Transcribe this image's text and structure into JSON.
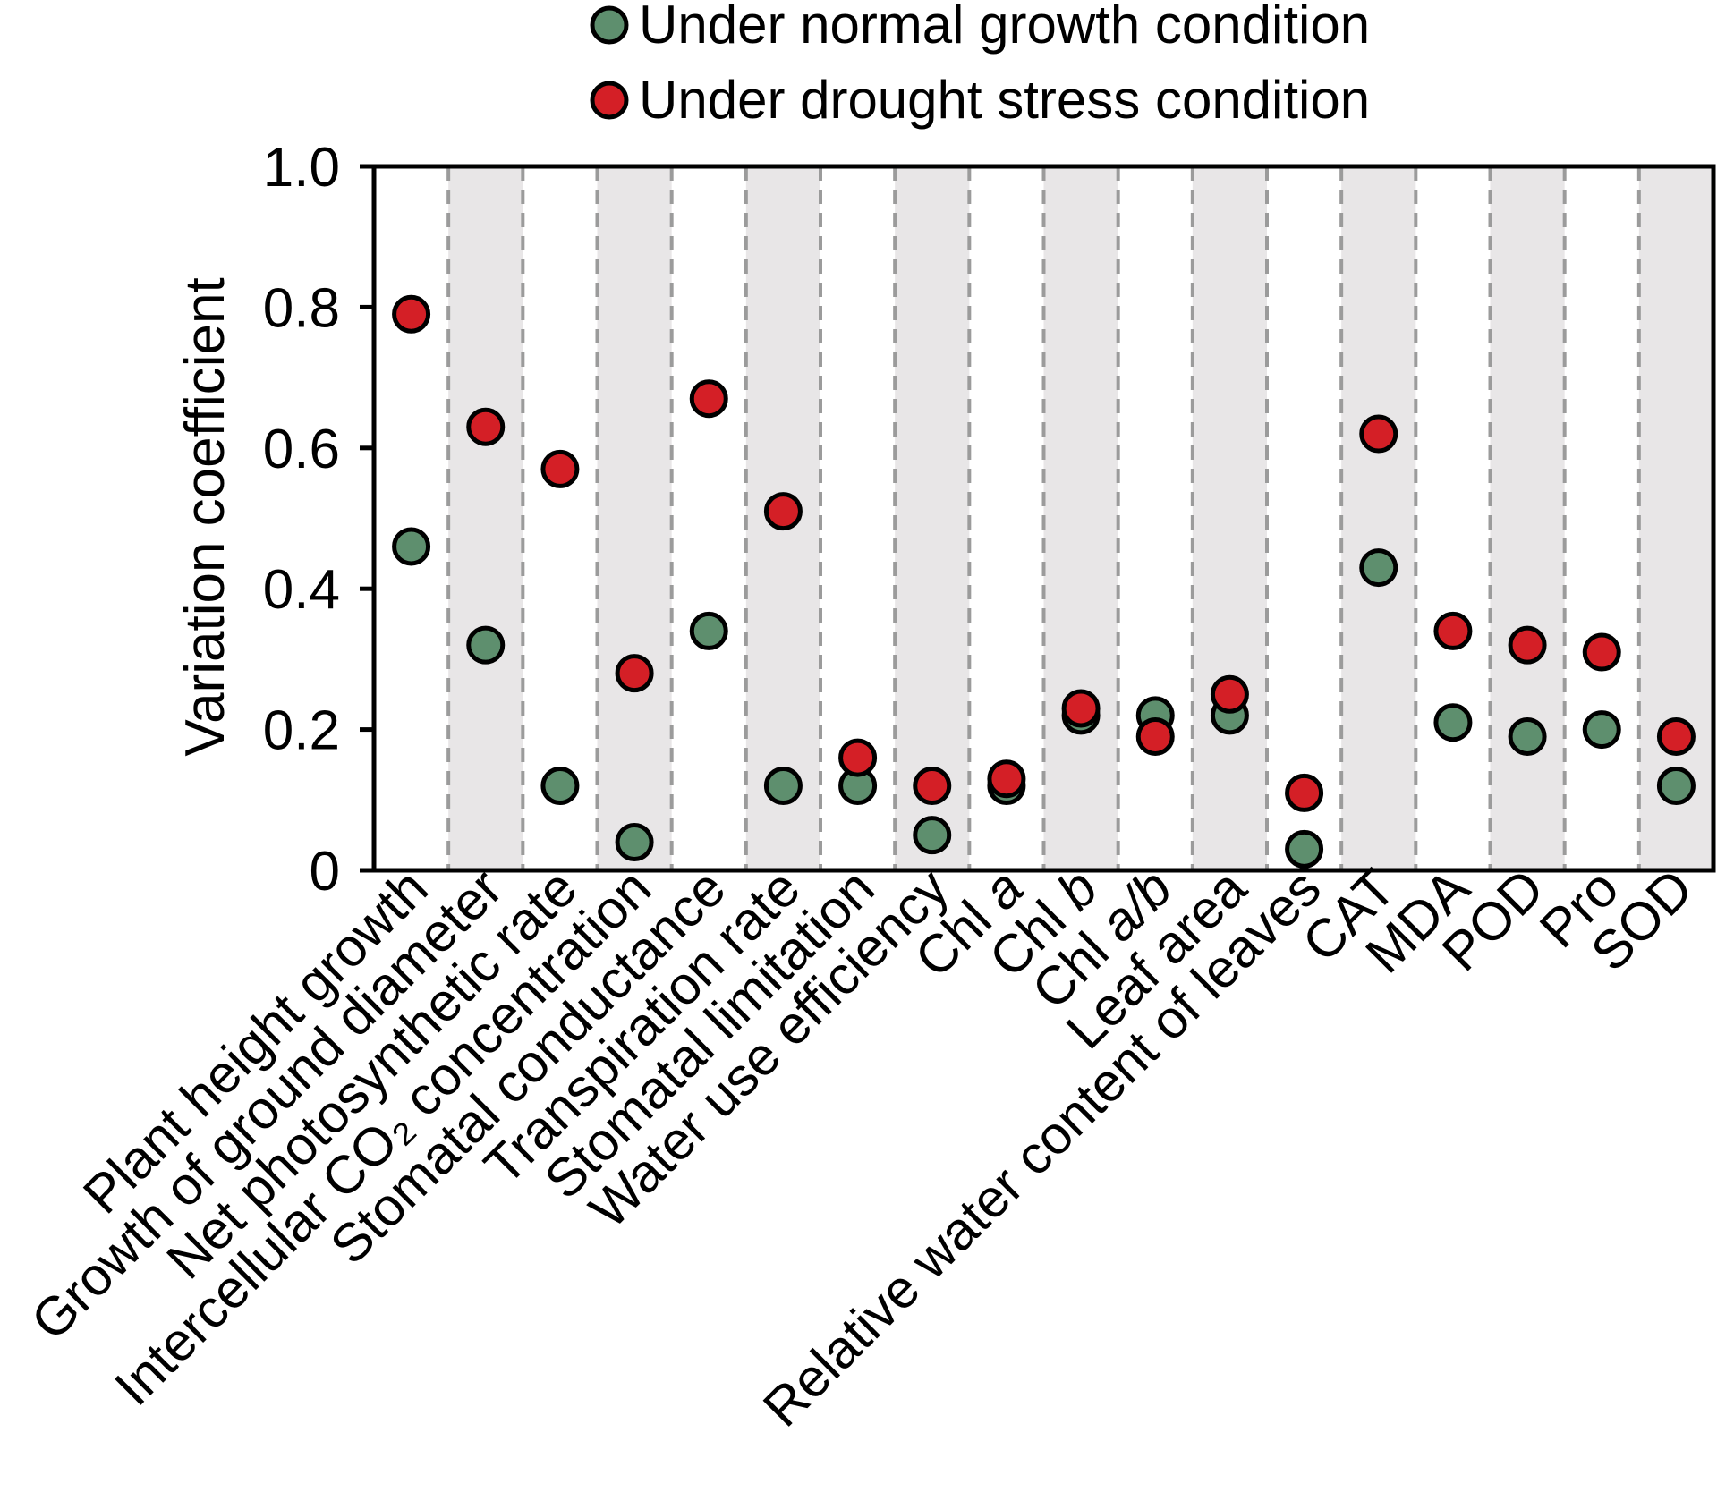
{
  "chart_data": {
    "type": "scatter",
    "ylabel": "Variation coefficient",
    "ylim": [
      0,
      1.0
    ],
    "yticks": [
      {
        "value": 0,
        "label": "0"
      },
      {
        "value": 0.2,
        "label": "0.2"
      },
      {
        "value": 0.4,
        "label": "0.4"
      },
      {
        "value": 0.6,
        "label": "0.6"
      },
      {
        "value": 0.8,
        "label": "0.8"
      },
      {
        "value": 1.0,
        "label": "1.0"
      }
    ],
    "categories": [
      "Plant height growth",
      "Growth of ground diameter",
      "Net photosynthetic rate",
      "Intercellular CO₂ concentration",
      "Stomatal conductance",
      "Transpiration rate",
      "Stomatal limitation",
      "Water use efficiency",
      "Chl a",
      "Chl b",
      "Chl a/b",
      "Leaf area",
      "Relative water content of leaves",
      "CAT",
      "MDA",
      "POD",
      "Pro",
      "SOD"
    ],
    "series": [
      {
        "name": "Under normal growth condition",
        "color": "#5e8f6e",
        "values": [
          0.46,
          0.32,
          0.12,
          0.04,
          0.34,
          0.12,
          0.12,
          0.05,
          0.12,
          0.22,
          0.22,
          0.22,
          0.03,
          0.43,
          0.21,
          0.19,
          0.2,
          0.12
        ]
      },
      {
        "name": "Under drought stress condition",
        "color": "#d41f26",
        "values": [
          0.79,
          0.63,
          0.57,
          0.28,
          0.67,
          0.51,
          0.16,
          0.12,
          0.13,
          0.23,
          0.19,
          0.25,
          0.11,
          0.62,
          0.34,
          0.32,
          0.31,
          0.19
        ]
      }
    ],
    "band_color": "#e8e6e7",
    "grid": "dashed vertical category dividers",
    "legend_position": "top"
  }
}
